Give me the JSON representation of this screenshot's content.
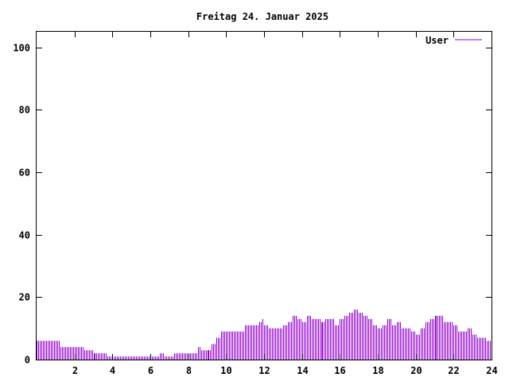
{
  "chart_data": {
    "type": "bar",
    "title": "Freitag 24. Januar 2025",
    "xlabel": "",
    "ylabel": "",
    "xlim": [
      0,
      24
    ],
    "ylim": [
      0,
      105
    ],
    "x_ticks": [
      "2",
      "4",
      "6",
      "8",
      "10",
      "12",
      "14",
      "16",
      "18",
      "20",
      "22",
      "24"
    ],
    "y_ticks": [
      "0",
      "20",
      "40",
      "60",
      "80",
      "100"
    ],
    "grid": false,
    "legend_position": "top-right",
    "series": [
      {
        "name": "User",
        "color": "#9400d3",
        "points": [
          [
            0.0,
            6
          ],
          [
            0.5,
            6
          ],
          [
            1.0,
            6
          ],
          [
            1.25,
            6
          ],
          [
            1.25,
            4
          ],
          [
            2.5,
            4
          ],
          [
            2.5,
            3
          ],
          [
            3.0,
            3
          ],
          [
            3.0,
            2
          ],
          [
            3.75,
            2
          ],
          [
            3.75,
            1
          ],
          [
            6.5,
            1
          ],
          [
            6.5,
            2
          ],
          [
            6.75,
            2
          ],
          [
            6.75,
            1
          ],
          [
            7.25,
            1
          ],
          [
            7.25,
            2
          ],
          [
            8.5,
            2
          ],
          [
            8.5,
            4
          ],
          [
            8.6,
            3
          ],
          [
            9.0,
            3
          ],
          [
            9.25,
            5
          ],
          [
            9.5,
            7
          ],
          [
            9.75,
            9
          ],
          [
            10.0,
            9
          ],
          [
            10.5,
            9
          ],
          [
            11.0,
            11
          ],
          [
            11.5,
            11
          ],
          [
            11.75,
            12
          ],
          [
            11.85,
            13
          ],
          [
            12.0,
            11
          ],
          [
            12.25,
            10
          ],
          [
            12.75,
            10
          ],
          [
            13.0,
            11
          ],
          [
            13.25,
            12
          ],
          [
            13.5,
            14
          ],
          [
            13.75,
            13
          ],
          [
            14.0,
            12
          ],
          [
            14.25,
            14
          ],
          [
            14.5,
            13
          ],
          [
            15.0,
            12
          ],
          [
            15.25,
            13
          ],
          [
            15.5,
            13
          ],
          [
            15.75,
            11
          ],
          [
            16.0,
            13
          ],
          [
            16.25,
            14
          ],
          [
            16.5,
            15
          ],
          [
            16.75,
            16
          ],
          [
            17.0,
            15
          ],
          [
            17.25,
            14
          ],
          [
            17.5,
            13
          ],
          [
            17.75,
            11
          ],
          [
            18.0,
            10
          ],
          [
            18.25,
            11
          ],
          [
            18.5,
            13
          ],
          [
            18.75,
            11
          ],
          [
            19.0,
            12
          ],
          [
            19.25,
            10
          ],
          [
            19.75,
            9
          ],
          [
            20.0,
            8
          ],
          [
            20.25,
            10
          ],
          [
            20.5,
            12
          ],
          [
            20.75,
            13
          ],
          [
            21.0,
            14
          ],
          [
            21.25,
            14
          ],
          [
            21.5,
            12
          ],
          [
            22.0,
            11
          ],
          [
            22.25,
            9
          ],
          [
            22.5,
            9
          ],
          [
            22.75,
            10
          ],
          [
            23.0,
            8
          ],
          [
            23.25,
            7
          ],
          [
            23.5,
            7
          ],
          [
            23.75,
            6
          ],
          [
            24.0,
            5
          ]
        ]
      }
    ]
  }
}
